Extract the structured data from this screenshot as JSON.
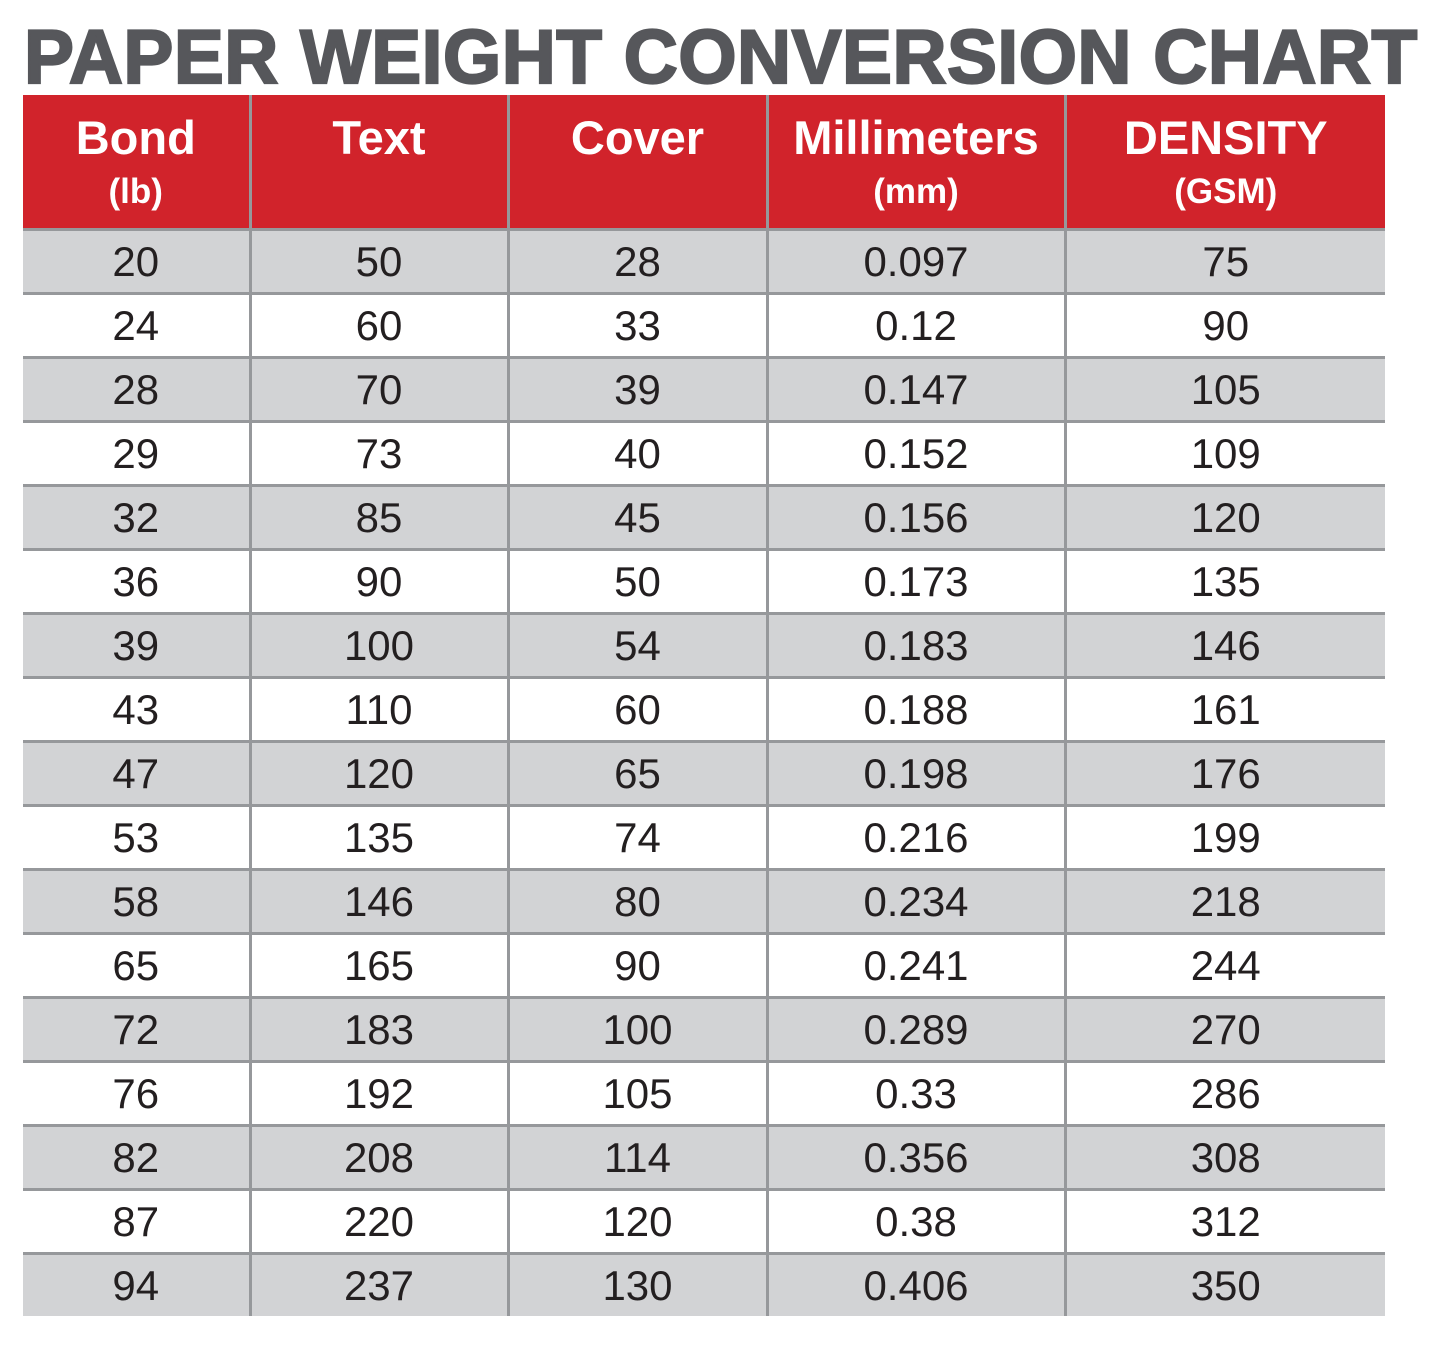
{
  "page": {
    "title": "PAPER WEIGHT CONVERSION CHART"
  },
  "colors": {
    "header_bg": "#d1232b",
    "header_text": "#ffffff",
    "row_alt_bg": "#d2d3d5",
    "row_bg": "#ffffff",
    "grid_line": "#96989b",
    "title_text": "#56575b",
    "cell_text": "#231f20"
  },
  "table": {
    "columns": [
      {
        "label": "Bond",
        "sublabel": "(lb)"
      },
      {
        "label": "Text",
        "sublabel": ""
      },
      {
        "label": "Cover",
        "sublabel": ""
      },
      {
        "label": "Millimeters",
        "sublabel": "(mm)"
      },
      {
        "label": "DENSITY",
        "sublabel": "(GSM)"
      }
    ],
    "rows": [
      [
        "20",
        "50",
        "28",
        "0.097",
        "75"
      ],
      [
        "24",
        "60",
        "33",
        "0.12",
        "90"
      ],
      [
        "28",
        "70",
        "39",
        "0.147",
        "105"
      ],
      [
        "29",
        "73",
        "40",
        "0.152",
        "109"
      ],
      [
        "32",
        "85",
        "45",
        "0.156",
        "120"
      ],
      [
        "36",
        "90",
        "50",
        "0.173",
        "135"
      ],
      [
        "39",
        "100",
        "54",
        "0.183",
        "146"
      ],
      [
        "43",
        "110",
        "60",
        "0.188",
        "161"
      ],
      [
        "47",
        "120",
        "65",
        "0.198",
        "176"
      ],
      [
        "53",
        "135",
        "74",
        "0.216",
        "199"
      ],
      [
        "58",
        "146",
        "80",
        "0.234",
        "218"
      ],
      [
        "65",
        "165",
        "90",
        "0.241",
        "244"
      ],
      [
        "72",
        "183",
        "100",
        "0.289",
        "270"
      ],
      [
        "76",
        "192",
        "105",
        "0.33",
        "286"
      ],
      [
        "82",
        "208",
        "114",
        "0.356",
        "308"
      ],
      [
        "87",
        "220",
        "120",
        "0.38",
        "312"
      ],
      [
        "94",
        "237",
        "130",
        "0.406",
        "350"
      ]
    ]
  },
  "chart_data": {
    "type": "table",
    "title": "PAPER WEIGHT CONVERSION CHART",
    "columns": [
      "Bond (lb)",
      "Text",
      "Cover",
      "Millimeters (mm)",
      "DENSITY (GSM)"
    ],
    "rows": [
      [
        20,
        50,
        28,
        0.097,
        75
      ],
      [
        24,
        60,
        33,
        0.12,
        90
      ],
      [
        28,
        70,
        39,
        0.147,
        105
      ],
      [
        29,
        73,
        40,
        0.152,
        109
      ],
      [
        32,
        85,
        45,
        0.156,
        120
      ],
      [
        36,
        90,
        50,
        0.173,
        135
      ],
      [
        39,
        100,
        54,
        0.183,
        146
      ],
      [
        43,
        110,
        60,
        0.188,
        161
      ],
      [
        47,
        120,
        65,
        0.198,
        176
      ],
      [
        53,
        135,
        74,
        0.216,
        199
      ],
      [
        58,
        146,
        80,
        0.234,
        218
      ],
      [
        65,
        165,
        90,
        0.241,
        244
      ],
      [
        72,
        183,
        100,
        0.289,
        270
      ],
      [
        76,
        192,
        105,
        0.33,
        286
      ],
      [
        82,
        208,
        114,
        0.356,
        308
      ],
      [
        87,
        220,
        120,
        0.38,
        312
      ],
      [
        94,
        237,
        130,
        0.406,
        350
      ]
    ],
    "layout_hints": {
      "alternating_row_shading": true,
      "first_data_row_shaded": true,
      "header_style": "red band, white bold text"
    }
  }
}
